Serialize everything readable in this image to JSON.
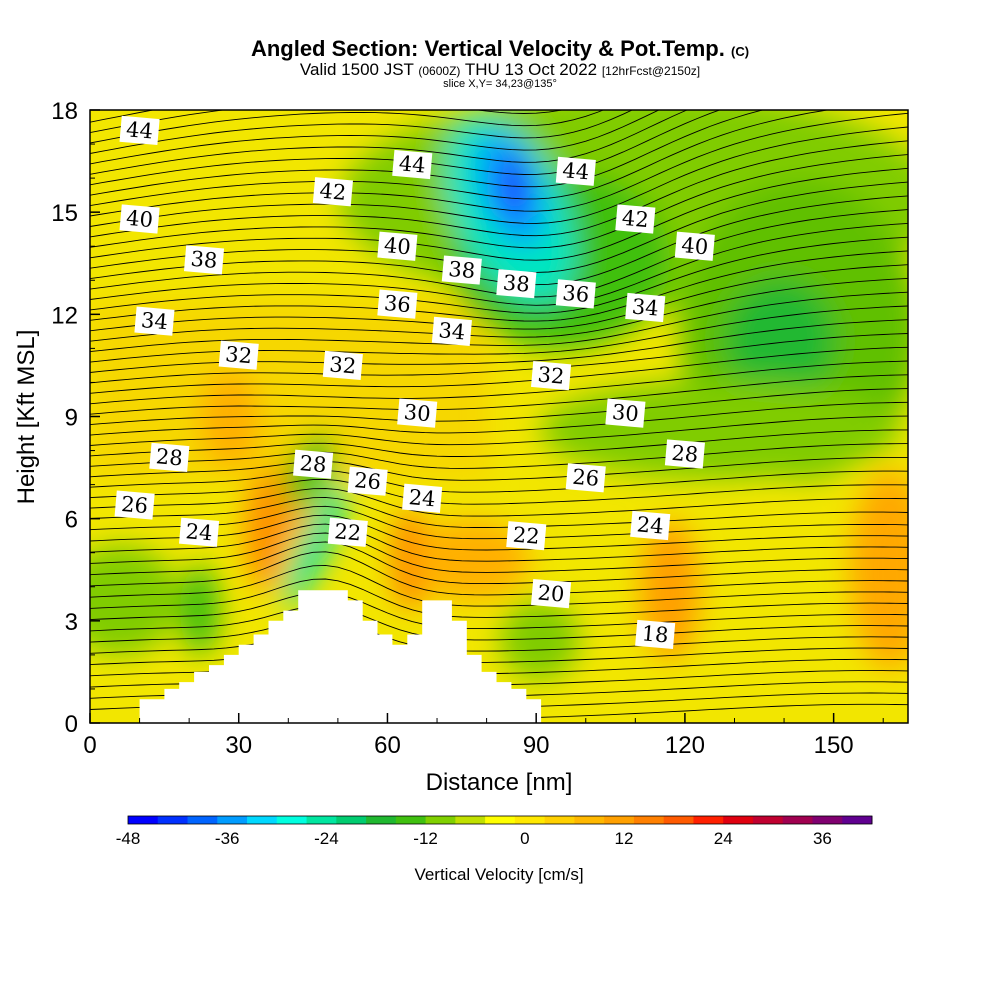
{
  "header": {
    "title": "Angled Section: Vertical Velocity & Pot.Temp.",
    "copyright": "(C)",
    "valid_prefix": "Valid 1500 JST",
    "valid_utc": "(0600Z)",
    "valid_date": "THU 13 Oct 2022",
    "forecast": "[12hrFcst@2150z]",
    "slice": "slice X,Y= 34,23@135°"
  },
  "chart_data": {
    "type": "heatmap",
    "xlabel": "Distance [nm]",
    "ylabel": "Height [Kft MSL]",
    "xlim": [
      0,
      165
    ],
    "ylim": [
      0,
      18
    ],
    "xticks": [
      0,
      30,
      60,
      90,
      120,
      150
    ],
    "yticks": [
      0,
      3,
      6,
      9,
      12,
      15,
      18
    ],
    "colorbar": {
      "label": "Vertical Velocity [cm/s]",
      "min": -48,
      "max": 42,
      "step": 3,
      "ticks": [
        -48,
        -36,
        -24,
        -12,
        0,
        12,
        24,
        36
      ],
      "colors": [
        "#0000ff",
        "#0030ff",
        "#0064ff",
        "#009cff",
        "#00d8ff",
        "#00ffe0",
        "#00e6a0",
        "#00cc70",
        "#20b830",
        "#40c010",
        "#80d000",
        "#c0e000",
        "#ffff00",
        "#ffe800",
        "#ffd000",
        "#ffb800",
        "#ffa000",
        "#ff8000",
        "#ff5a00",
        "#ff2000",
        "#e00010",
        "#c00030",
        "#a00050",
        "#800070",
        "#600090"
      ]
    },
    "theta_labels": [
      {
        "value": "44",
        "x": 10,
        "y": 17.4
      },
      {
        "value": "44",
        "x": 65,
        "y": 16.4
      },
      {
        "value": "44",
        "x": 98,
        "y": 16.2
      },
      {
        "value": "42",
        "x": 49,
        "y": 15.6
      },
      {
        "value": "42",
        "x": 110,
        "y": 14.8
      },
      {
        "value": "40",
        "x": 10,
        "y": 14.8
      },
      {
        "value": "40",
        "x": 62,
        "y": 14.0
      },
      {
        "value": "40",
        "x": 122,
        "y": 14.0
      },
      {
        "value": "38",
        "x": 23,
        "y": 13.6
      },
      {
        "value": "38",
        "x": 75,
        "y": 13.3
      },
      {
        "value": "38",
        "x": 86,
        "y": 12.9
      },
      {
        "value": "36",
        "x": 62,
        "y": 12.3
      },
      {
        "value": "36",
        "x": 98,
        "y": 12.6
      },
      {
        "value": "34",
        "x": 13,
        "y": 11.8
      },
      {
        "value": "34",
        "x": 73,
        "y": 11.5
      },
      {
        "value": "34",
        "x": 112,
        "y": 12.2
      },
      {
        "value": "32",
        "x": 30,
        "y": 10.8
      },
      {
        "value": "32",
        "x": 51,
        "y": 10.5
      },
      {
        "value": "32",
        "x": 93,
        "y": 10.2
      },
      {
        "value": "30",
        "x": 66,
        "y": 9.1
      },
      {
        "value": "30",
        "x": 108,
        "y": 9.1
      },
      {
        "value": "28",
        "x": 16,
        "y": 7.8
      },
      {
        "value": "28",
        "x": 45,
        "y": 7.6
      },
      {
        "value": "28",
        "x": 120,
        "y": 7.9
      },
      {
        "value": "26",
        "x": 9,
        "y": 6.4
      },
      {
        "value": "26",
        "x": 56,
        "y": 7.1
      },
      {
        "value": "26",
        "x": 100,
        "y": 7.2
      },
      {
        "value": "24",
        "x": 22,
        "y": 5.6
      },
      {
        "value": "24",
        "x": 67,
        "y": 6.6
      },
      {
        "value": "24",
        "x": 113,
        "y": 5.8
      },
      {
        "value": "22",
        "x": 52,
        "y": 5.6
      },
      {
        "value": "22",
        "x": 88,
        "y": 5.5
      },
      {
        "value": "20",
        "x": 93,
        "y": 3.8
      },
      {
        "value": "18",
        "x": 114,
        "y": 2.6
      }
    ],
    "terrain": [
      [
        10,
        0.7
      ],
      [
        15,
        0.7
      ],
      [
        15,
        1.0
      ],
      [
        18,
        1.0
      ],
      [
        18,
        1.2
      ],
      [
        21,
        1.2
      ],
      [
        21,
        1.5
      ],
      [
        24,
        1.5
      ],
      [
        24,
        1.7
      ],
      [
        27,
        1.7
      ],
      [
        27,
        2.0
      ],
      [
        30,
        2.0
      ],
      [
        30,
        2.3
      ],
      [
        33,
        2.3
      ],
      [
        33,
        2.6
      ],
      [
        36,
        2.6
      ],
      [
        36,
        3.0
      ],
      [
        39,
        3.0
      ],
      [
        39,
        3.3
      ],
      [
        42,
        3.3
      ],
      [
        42,
        3.9
      ],
      [
        52,
        3.9
      ],
      [
        52,
        3.6
      ],
      [
        55,
        3.6
      ],
      [
        55,
        3.0
      ],
      [
        58,
        3.0
      ],
      [
        58,
        2.6
      ],
      [
        61,
        2.6
      ],
      [
        61,
        2.3
      ],
      [
        64,
        2.3
      ],
      [
        64,
        2.6
      ],
      [
        67,
        2.6
      ],
      [
        67,
        3.6
      ],
      [
        73,
        3.6
      ],
      [
        73,
        3.0
      ],
      [
        76,
        3.0
      ],
      [
        76,
        2.0
      ],
      [
        79,
        2.0
      ],
      [
        79,
        1.5
      ],
      [
        82,
        1.5
      ],
      [
        82,
        1.2
      ],
      [
        85,
        1.2
      ],
      [
        85,
        1.0
      ],
      [
        88,
        1.0
      ],
      [
        88,
        0.7
      ],
      [
        91,
        0.7
      ],
      [
        91,
        0.35
      ]
    ]
  }
}
